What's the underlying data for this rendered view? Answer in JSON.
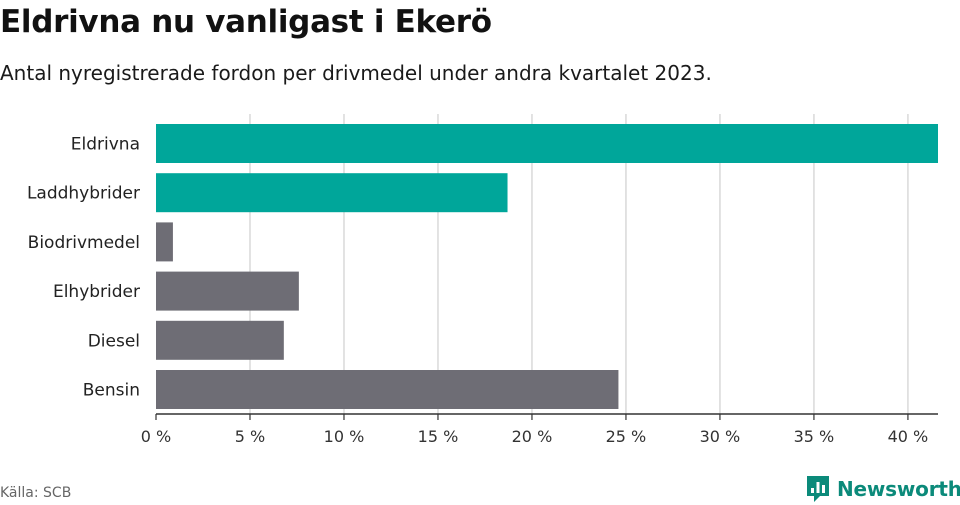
{
  "header": {
    "title": "Eldrivna nu vanligast i Ekerö",
    "subtitle": "Antal nyregistrerade fordon per drivmedel under andra kvartalet 2023."
  },
  "footer": {
    "source": "Källa: SCB",
    "brand": "Newsworthy"
  },
  "colors": {
    "highlight": "#00a69a",
    "other": "#6e6d75",
    "grid": "#d9d9d9",
    "axis": "#333333",
    "brand": "#0b8a7a"
  },
  "chart_data": {
    "type": "bar",
    "orientation": "horizontal",
    "categories": [
      "Eldrivna",
      "Laddhybrider",
      "Biodrivmedel",
      "Elhybrider",
      "Diesel",
      "Bensin"
    ],
    "values": [
      41.6,
      18.7,
      0.9,
      7.6,
      6.8,
      24.6
    ],
    "highlighted": [
      true,
      true,
      false,
      false,
      false,
      false
    ],
    "xlim": [
      0,
      41.6
    ],
    "xticks": [
      0,
      5,
      10,
      15,
      20,
      25,
      30,
      35,
      40
    ],
    "xtick_labels": [
      "0 %",
      "5 %",
      "10 %",
      "15 %",
      "20 %",
      "25 %",
      "30 %",
      "35 %",
      "40 %"
    ],
    "grid": "vertical"
  }
}
